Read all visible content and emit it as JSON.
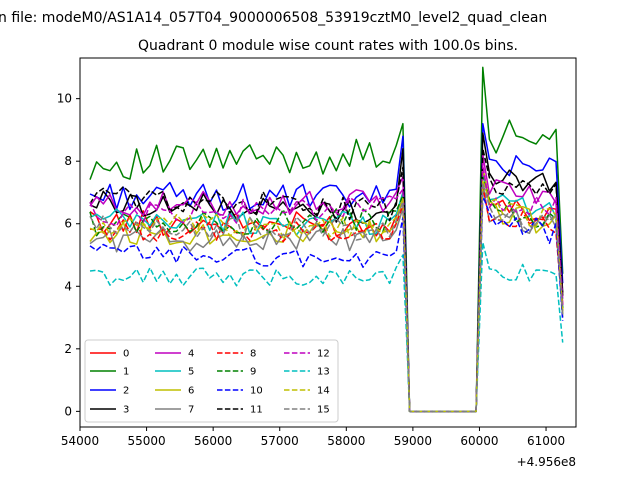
{
  "chart_data": {
    "type": "line",
    "suptitle": "n file: modeM0/AS1A14_057T04_9000006508_53919cztM0_level2_quad_clean",
    "title": "Quadrant 0 module wise count rates with 100.0s bins.",
    "xlabel": "",
    "ylabel": "",
    "x_offset_label": "+4.956e8",
    "xlim": [
      54000,
      61450
    ],
    "ylim": [
      -0.5,
      11.3
    ],
    "xticks": [
      54000,
      55000,
      56000,
      57000,
      58000,
      59000,
      60000,
      61000
    ],
    "xtick_labels": [
      "54000",
      "55000",
      "56000",
      "57000",
      "58000",
      "59000",
      "60000",
      "61000"
    ],
    "yticks": [
      0,
      2,
      4,
      6,
      8,
      10
    ],
    "ytick_labels": [
      "0",
      "2",
      "4",
      "6",
      "8",
      "10"
    ],
    "grid": false,
    "legend_position": "lower-left",
    "legend_columns": 4,
    "segments": {
      "first": {
        "start": 54150,
        "step": 100,
        "count": 48
      },
      "gap_end": 59950,
      "second": {
        "start": 60050,
        "step": 100,
        "count": 13
      }
    },
    "series": [
      {
        "name": "0",
        "color": "#ff0000",
        "dash": "solid",
        "base1": 6.05,
        "amp1": 0.4,
        "trend1": -0.1,
        "peak1": 7.0,
        "base2": 6.6,
        "amp2": 0.4,
        "first2": 7.7,
        "end": 3.4
      },
      {
        "name": "1",
        "color": "#008000",
        "dash": "solid",
        "base1": 7.9,
        "amp1": 0.55,
        "trend1": 0.3,
        "peak1": 9.2,
        "base2": 8.9,
        "amp2": 0.6,
        "first2": 11.0,
        "end": 4.4
      },
      {
        "name": "2",
        "color": "#0000ff",
        "dash": "solid",
        "base1": 6.9,
        "amp1": 0.45,
        "trend1": -0.1,
        "peak1": 8.8,
        "base2": 8.2,
        "amp2": 0.5,
        "first2": 9.2,
        "end": 4.1
      },
      {
        "name": "3",
        "color": "#000000",
        "dash": "solid",
        "base1": 6.7,
        "amp1": 0.4,
        "trend1": -0.4,
        "peak1": 8.4,
        "base2": 7.6,
        "amp2": 0.4,
        "first2": 8.9,
        "end": 3.8
      },
      {
        "name": "4",
        "color": "#bf00bf",
        "dash": "solid",
        "base1": 6.6,
        "amp1": 0.4,
        "trend1": 0.1,
        "peak1": 7.5,
        "base2": 7.3,
        "amp2": 0.4,
        "first2": 8.2,
        "end": 3.6
      },
      {
        "name": "5",
        "color": "#00bfbf",
        "dash": "solid",
        "base1": 6.1,
        "amp1": 0.4,
        "trend1": -0.1,
        "peak1": 7.0,
        "base2": 6.7,
        "amp2": 0.4,
        "first2": 7.6,
        "end": 3.3
      },
      {
        "name": "6",
        "color": "#bfbf00",
        "dash": "solid",
        "base1": 5.7,
        "amp1": 0.4,
        "trend1": 0.0,
        "peak1": 6.8,
        "base2": 6.4,
        "amp2": 0.4,
        "first2": 7.8,
        "end": 3.1
      },
      {
        "name": "7",
        "color": "#808080",
        "dash": "solid",
        "base1": 5.5,
        "amp1": 0.4,
        "trend1": 0.0,
        "peak1": 6.5,
        "base2": 6.3,
        "amp2": 0.4,
        "first2": 7.3,
        "end": 3.0
      },
      {
        "name": "8",
        "color": "#ff0000",
        "dash": "dashed",
        "base1": 5.8,
        "amp1": 0.35,
        "trend1": -0.1,
        "peak1": 6.6,
        "base2": 6.3,
        "amp2": 0.4,
        "first2": 7.2,
        "end": 3.2
      },
      {
        "name": "9",
        "color": "#008000",
        "dash": "dashed",
        "base1": 6.0,
        "amp1": 0.4,
        "trend1": 0.1,
        "peak1": 6.9,
        "base2": 6.6,
        "amp2": 0.4,
        "first2": 7.5,
        "end": 3.3
      },
      {
        "name": "10",
        "color": "#0000ff",
        "dash": "dashed",
        "base1": 5.1,
        "amp1": 0.3,
        "trend1": -0.3,
        "peak1": 6.2,
        "base2": 6.1,
        "amp2": 0.4,
        "first2": 6.9,
        "end": 2.9
      },
      {
        "name": "11",
        "color": "#000000",
        "dash": "dashed",
        "base1": 6.9,
        "amp1": 0.4,
        "trend1": -0.5,
        "peak1": 7.8,
        "base2": 7.4,
        "amp2": 0.4,
        "first2": 8.4,
        "end": 3.7
      },
      {
        "name": "12",
        "color": "#bf00bf",
        "dash": "dashed",
        "base1": 6.3,
        "amp1": 0.4,
        "trend1": 0.2,
        "peak1": 7.1,
        "base2": 6.9,
        "amp2": 0.4,
        "first2": 7.9,
        "end": 3.4
      },
      {
        "name": "13",
        "color": "#00bfbf",
        "dash": "dashed",
        "base1": 4.3,
        "amp1": 0.3,
        "trend1": 0.0,
        "peak1": 5.0,
        "base2": 4.6,
        "amp2": 0.35,
        "first2": 5.4,
        "end": 2.2
      },
      {
        "name": "14",
        "color": "#bfbf00",
        "dash": "dashed",
        "base1": 5.9,
        "amp1": 0.4,
        "trend1": 0.0,
        "peak1": 6.8,
        "base2": 6.5,
        "amp2": 0.4,
        "first2": 7.4,
        "end": 3.2
      },
      {
        "name": "15",
        "color": "#808080",
        "dash": "dashed",
        "base1": 5.9,
        "amp1": 0.4,
        "trend1": -0.1,
        "peak1": 6.7,
        "base2": 6.4,
        "amp2": 0.4,
        "first2": 7.3,
        "end": 3.1
      }
    ]
  }
}
